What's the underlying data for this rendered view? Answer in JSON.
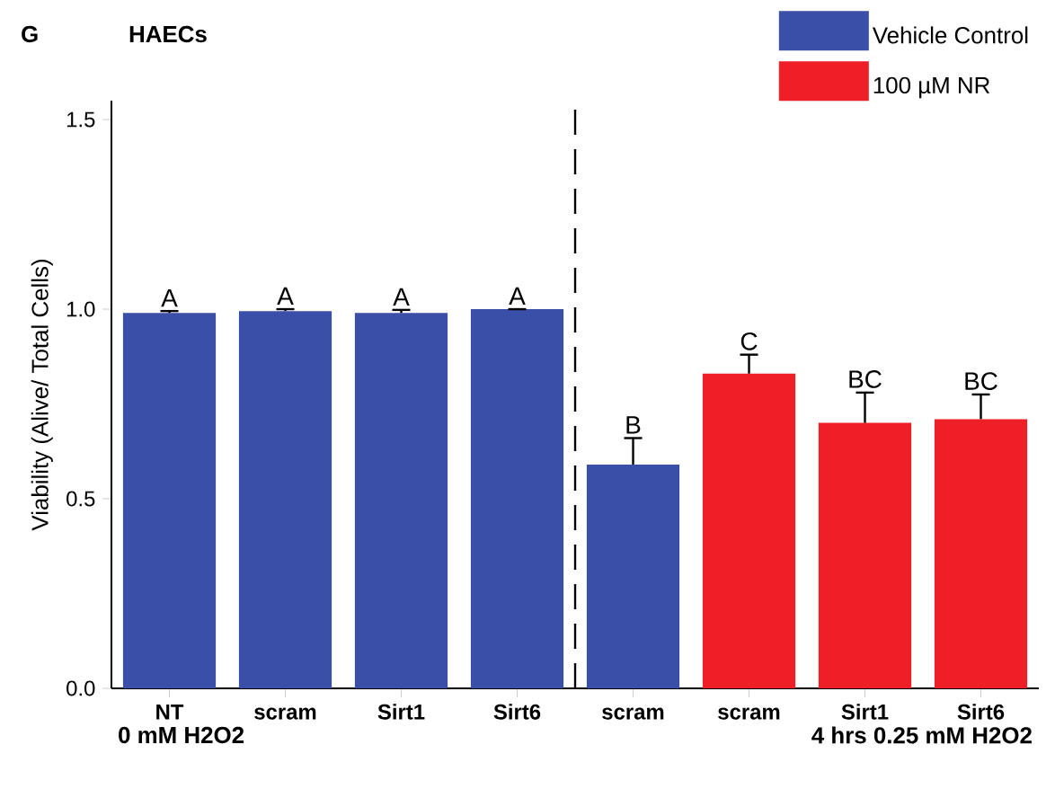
{
  "chart_data": {
    "type": "bar",
    "title": "HAECs",
    "ylabel": "Viability (Alive/ Total Cells)",
    "categories": [
      "NT",
      "scram",
      "Sirt1",
      "Sirt6",
      "scram",
      "scram",
      "Sirt1",
      "Sirt6"
    ],
    "series": [
      {
        "name": "Vehicle Control",
        "color": "#3a4fa8",
        "values": [
          0.99,
          0.995,
          0.99,
          1.0,
          0.59,
          null,
          null,
          null
        ],
        "errors": [
          0.005,
          0.005,
          0.008,
          null,
          0.07,
          null,
          null,
          null
        ],
        "value_labels": [
          "A",
          "A",
          "A",
          "A",
          "B",
          null,
          null,
          null
        ]
      },
      {
        "name": "100 µM NR",
        "color": "#ee1f26",
        "values": [
          null,
          null,
          null,
          null,
          null,
          0.83,
          0.7,
          0.71
        ],
        "errors": [
          null,
          null,
          null,
          null,
          null,
          0.05,
          0.08,
          0.065
        ],
        "value_labels": [
          null,
          null,
          null,
          null,
          null,
          "C",
          "BC",
          "BC"
        ]
      }
    ],
    "ylim": [
      0,
      1.55
    ],
    "yticks": [
      {
        "value": 0,
        "label": "0.0"
      },
      {
        "value": 0.5,
        "label": "0.5"
      },
      {
        "value": 1.0,
        "label": "1.0"
      },
      {
        "value": 1.5,
        "label": "1.5"
      }
    ],
    "annotations": [
      "G",
      "0 mM H2O2",
      "4 hrs 0.25 mM H2O2"
    ],
    "legend": "top right",
    "grid": false
  }
}
